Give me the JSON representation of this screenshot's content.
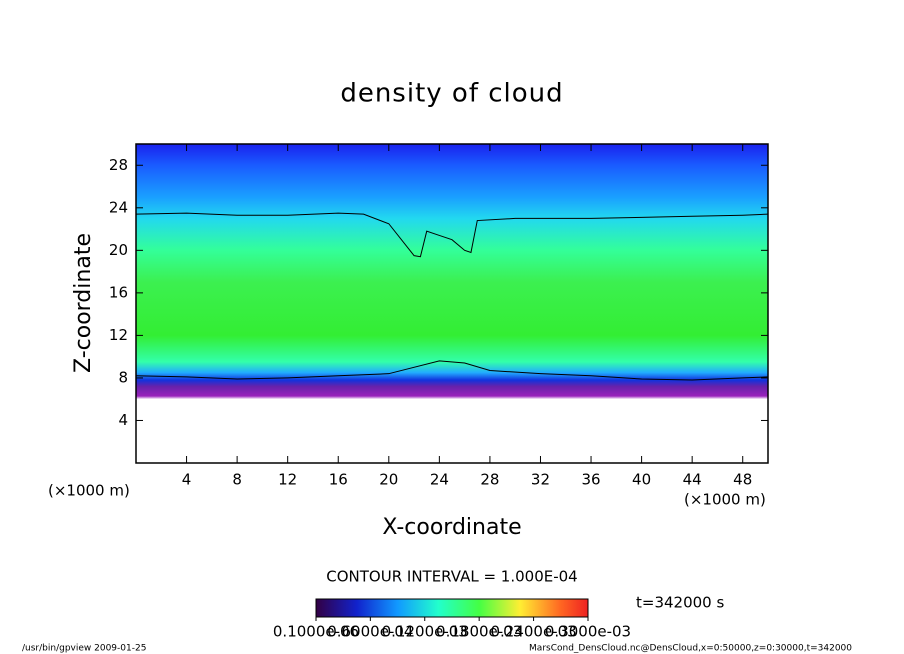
{
  "chart_data": {
    "type": "contour",
    "title": "density of cloud",
    "xlabel": "X-coordinate",
    "ylabel": "Z-coordinate",
    "x_unit": "(×1000 m)",
    "y_unit": "(×1000 m)",
    "xlim": [
      0,
      50
    ],
    "ylim": [
      0,
      30
    ],
    "xticks": [
      4,
      8,
      12,
      16,
      20,
      24,
      28,
      32,
      36,
      40,
      44,
      48
    ],
    "yticks": [
      4,
      8,
      12,
      16,
      20,
      24,
      28
    ],
    "contour_interval": "CONTOUR INTERVAL = 1.000E-04",
    "time": "t=342000 s",
    "contours": [
      {
        "x": [
          0,
          4,
          8,
          12,
          16,
          18,
          20,
          22,
          22.5,
          23,
          24,
          25,
          26,
          26.5,
          27,
          30,
          36,
          40,
          44,
          48,
          50
        ],
        "y": [
          23.4,
          23.5,
          23.3,
          23.3,
          23.5,
          23.4,
          22.5,
          19.5,
          19.4,
          21.8,
          21.4,
          21,
          20,
          19.8,
          22.8,
          23,
          23,
          23.1,
          23.2,
          23.3,
          23.4
        ]
      },
      {
        "x": [
          0,
          4,
          8,
          12,
          16,
          20,
          24,
          26,
          28,
          32,
          36,
          40,
          44,
          48,
          50
        ],
        "y": [
          8.2,
          8.1,
          7.9,
          8,
          8.2,
          8.4,
          9.6,
          9.4,
          8.7,
          8.4,
          8.2,
          7.9,
          7.8,
          8,
          8.1
        ]
      }
    ],
    "colorbar_ticks": [
      {
        "value": 1e-07,
        "label": "0.1000e-06"
      },
      {
        "value": 6e-05,
        "label": "0.6000e-04"
      },
      {
        "value": 0.00012,
        "label": "0.1200e-03"
      },
      {
        "value": 0.00018,
        "label": "0.1800e-03"
      },
      {
        "value": 0.00024,
        "label": "0.2400e-03"
      },
      {
        "value": 0.0003,
        "label": "0.3000e-03"
      }
    ],
    "footer_left": "/usr/bin/gpview  2009-01-25",
    "footer_right": "MarsCond_DensCloud.nc@DensCloud,x=0:50000,z=0:30000,t=342000"
  }
}
